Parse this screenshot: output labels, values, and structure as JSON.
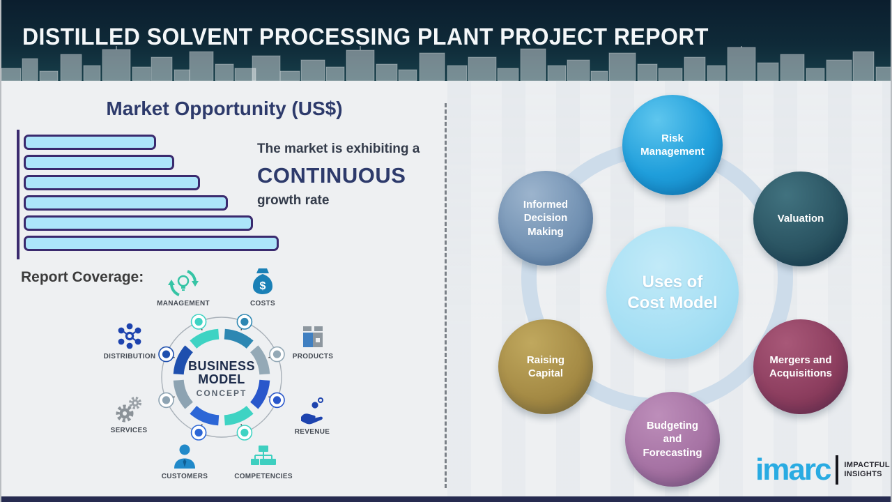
{
  "header": {
    "title": "DISTILLED SOLVENT PROCESSING PLANT PROJECT REPORT"
  },
  "market": {
    "heading": "Market Opportunity (US$)",
    "growth_line1": "The market is exhibiting a",
    "growth_emphasis": "CONTINUOUS",
    "growth_line2": "growth rate"
  },
  "chart_data": {
    "type": "bar",
    "orientation": "horizontal",
    "title": "Market Opportunity (US$)",
    "categories": [
      "",
      "",
      "",
      "",
      "",
      ""
    ],
    "values_relative_pct": [
      52,
      59,
      69,
      80,
      90,
      100
    ],
    "xlabel": "",
    "ylabel": "",
    "axis_note": "single left axis line, no tick labels; bars grow top to bottom indicating continuous growth",
    "bar_fill": "#ace5fa",
    "bar_border": "#3a2a6e"
  },
  "coverage": {
    "heading": "Report Coverage:",
    "wheel": {
      "line1": "BUSINESS",
      "line2": "MODEL",
      "line3": "CONCEPT"
    },
    "items": [
      {
        "label": "MANAGEMENT",
        "icon": "management-cycle-bulb-icon",
        "color": "#35c4a5"
      },
      {
        "label": "COSTS",
        "icon": "money-bag-icon",
        "color": "#1a80b6"
      },
      {
        "label": "DISTRIBUTION",
        "icon": "network-hub-icon",
        "color": "#1d43ae"
      },
      {
        "label": "PRODUCTS",
        "icon": "box-icon",
        "color": "#8d979f"
      },
      {
        "label": "SERVICES",
        "icon": "gears-icon",
        "color": "#8b9298"
      },
      {
        "label": "REVENUE",
        "icon": "hand-coins-icon",
        "color": "#1d43ae"
      },
      {
        "label": "CUSTOMERS",
        "icon": "person-icon",
        "color": "#2089c9"
      },
      {
        "label": "COMPETENCIES",
        "icon": "org-chart-icon",
        "color": "#3ecfc0"
      }
    ]
  },
  "uses": {
    "center": {
      "line1": "Uses of",
      "line2": "Cost Model",
      "color": "#a5dff4"
    },
    "connector_ring_color": "#cddcea",
    "satellites": [
      {
        "label": "Risk Management",
        "color": "#1f9edb"
      },
      {
        "label": "Informed Decision Making",
        "color": "#7493b4"
      },
      {
        "label": "Valuation",
        "color": "#2b5563"
      },
      {
        "label": "Raising Capital",
        "color": "#a68c46"
      },
      {
        "label": "Mergers and Acquisitions",
        "color": "#8e3f60"
      },
      {
        "label": "Budgeting and Forecasting",
        "color": "#a673a4"
      }
    ]
  },
  "logo": {
    "brand": "imarc",
    "tagline_line1": "IMPACTFUL",
    "tagline_line2": "INSIGHTS",
    "brand_color": "#29abe2"
  }
}
